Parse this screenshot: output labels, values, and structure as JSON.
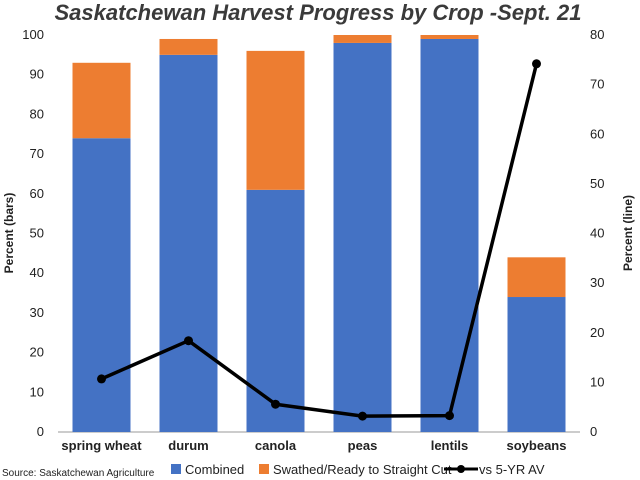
{
  "chart_data": {
    "type": "bar",
    "stacked": true,
    "title": "Saskatchewan Harvest Progress by Crop -Sept. 21",
    "source": "Source: Saskatchewan Agriculture",
    "ylabel": "Percent (bars)",
    "y2label": "Percent (line)",
    "ylim": [
      0,
      100
    ],
    "y2lim": [
      0,
      80
    ],
    "yticks": [
      "0",
      "10",
      "20",
      "30",
      "40",
      "50",
      "60",
      "70",
      "80",
      "90",
      "100"
    ],
    "y2ticks": [
      "0",
      "10",
      "20",
      "30",
      "40",
      "50",
      "60",
      "70",
      "80"
    ],
    "categories": [
      "spring wheat",
      "durum",
      "canola",
      "peas",
      "lentils",
      "soybeans"
    ],
    "series": [
      {
        "name": "Combined",
        "type": "bar",
        "axis": "left",
        "color": "#4472C4",
        "values": [
          74,
          95,
          61,
          98,
          99,
          34
        ]
      },
      {
        "name": "Swathed/Ready to Straight Cut",
        "type": "bar",
        "axis": "left",
        "color": "#ED7D31",
        "values": [
          19,
          4,
          35,
          2,
          1,
          10
        ]
      },
      {
        "name": "vs 5-YR AV",
        "type": "line",
        "axis": "right",
        "color": "#000000",
        "values": [
          10.7,
          18.4,
          5.6,
          3.2,
          3.3,
          74.2
        ]
      }
    ],
    "legend_position": "bottom",
    "grid": false
  }
}
